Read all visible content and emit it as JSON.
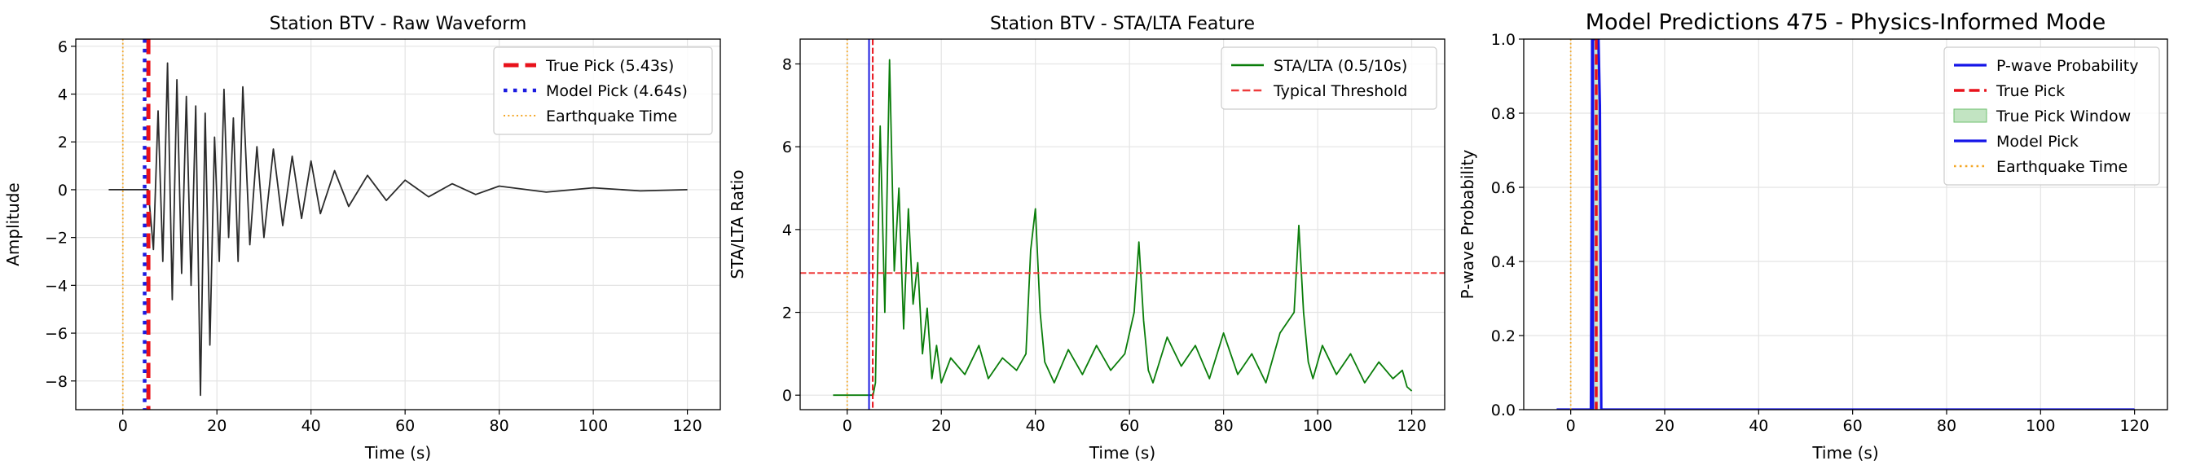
{
  "chart_data": [
    {
      "type": "line",
      "title": "Station BTV - Raw Waveform",
      "xlabel": "Time (s)",
      "ylabel": "Amplitude",
      "xlim": [
        -10,
        127
      ],
      "ylim": [
        -9.2,
        6.3
      ],
      "xticks": [
        0,
        20,
        40,
        60,
        80,
        100,
        120
      ],
      "xtick_labels": [
        "0",
        "20",
        "40",
        "60",
        "80",
        "100",
        "120"
      ],
      "yticks": [
        -8,
        -6,
        -4,
        -2,
        0,
        2,
        4,
        6
      ],
      "ytick_labels": [
        "−8",
        "−6",
        "−4",
        "−2",
        "0",
        "2",
        "4",
        "6"
      ],
      "grid": true,
      "legend_position": "top-right",
      "series": [
        {
          "color": "#2b2b2b",
          "style": "solid",
          "x": [
            -3,
            0,
            2,
            4,
            5.4,
            6.5,
            7.5,
            8.5,
            9.5,
            10.5,
            11.5,
            12.5,
            13.5,
            14.5,
            15.5,
            16.5,
            17.5,
            18.5,
            19.5,
            20.5,
            21.5,
            22.5,
            23.5,
            24.5,
            25.5,
            27,
            28.5,
            30,
            32,
            34,
            36,
            38,
            40,
            42,
            45,
            48,
            52,
            56,
            60,
            65,
            70,
            75,
            80,
            90,
            100,
            110,
            120
          ],
          "y": [
            0,
            0,
            0,
            0,
            0,
            -2.5,
            3.3,
            -3.0,
            5.3,
            -4.6,
            4.6,
            -3.5,
            3.9,
            -4.0,
            3.5,
            -8.6,
            3.2,
            -6.5,
            2.2,
            -3.0,
            4.2,
            -2.0,
            3.0,
            -3.0,
            4.3,
            -2.3,
            1.8,
            -2.0,
            1.7,
            -1.5,
            1.4,
            -1.2,
            1.2,
            -1.0,
            0.8,
            -0.7,
            0.6,
            -0.45,
            0.4,
            -0.3,
            0.25,
            -0.2,
            0.15,
            -0.1,
            0.08,
            -0.05,
            0
          ]
        }
      ],
      "vlines": [
        {
          "x": 5.43,
          "color": "#e8121b",
          "style": "dashed"
        },
        {
          "x": 4.64,
          "color": "#1b1be0",
          "style": "dotted"
        },
        {
          "x": 0,
          "color": "#f4a623",
          "style": "dotted"
        }
      ],
      "legend": [
        {
          "label": "True Pick (5.43s)",
          "color": "#e8121b",
          "style": "dashed"
        },
        {
          "label": "Model Pick (4.64s)",
          "color": "#1b1be0",
          "style": "dotted"
        },
        {
          "label": "Earthquake Time",
          "color": "#f4a623",
          "style": "dotted"
        }
      ]
    },
    {
      "type": "line",
      "title": "Station BTV - STA/LTA Feature",
      "xlabel": "Time (s)",
      "ylabel": "STA/LTA Ratio",
      "xlim": [
        -10,
        127
      ],
      "ylim": [
        -0.35,
        8.6
      ],
      "xticks": [
        0,
        20,
        40,
        60,
        80,
        100,
        120
      ],
      "xtick_labels": [
        "0",
        "20",
        "40",
        "60",
        "80",
        "100",
        "120"
      ],
      "yticks": [
        0,
        2,
        4,
        6,
        8
      ],
      "ytick_labels": [
        "0",
        "2",
        "4",
        "6",
        "8"
      ],
      "grid": true,
      "legend_position": "top-right",
      "series": [
        {
          "name": "STA/LTA (0.5/10s)",
          "color": "#0a7d0a",
          "style": "solid",
          "x": [
            -3,
            5.5,
            6,
            7,
            8,
            9,
            10,
            11,
            12,
            13,
            14,
            15,
            16,
            17,
            18,
            19,
            20,
            22,
            25,
            28,
            30,
            33,
            36,
            38,
            39,
            40,
            41,
            42,
            44,
            47,
            50,
            53,
            56,
            59,
            61,
            62,
            63,
            64,
            65,
            68,
            71,
            74,
            77,
            80,
            83,
            86,
            89,
            92,
            95,
            96,
            97,
            98,
            99,
            101,
            104,
            107,
            110,
            113,
            116,
            118,
            119,
            120
          ],
          "y": [
            0,
            0,
            0.3,
            6.5,
            2.0,
            8.1,
            3.0,
            5.0,
            1.6,
            4.5,
            2.2,
            3.2,
            1.0,
            2.1,
            0.4,
            1.2,
            0.3,
            0.9,
            0.5,
            1.2,
            0.4,
            0.9,
            0.6,
            1.0,
            3.5,
            4.5,
            2.0,
            0.8,
            0.3,
            1.1,
            0.5,
            1.2,
            0.6,
            1.0,
            2.0,
            3.7,
            1.8,
            0.6,
            0.3,
            1.4,
            0.7,
            1.2,
            0.4,
            1.5,
            0.5,
            1.0,
            0.3,
            1.5,
            2.0,
            4.1,
            2.0,
            0.8,
            0.4,
            1.2,
            0.5,
            1.0,
            0.3,
            0.8,
            0.4,
            0.6,
            0.2,
            0.1
          ]
        }
      ],
      "hlines": [
        {
          "y": 2.95,
          "color": "#ee3b3b",
          "style": "dashed",
          "name": "Typical Threshold"
        }
      ],
      "vlines": [
        {
          "x": 0,
          "color": "#f4a623",
          "style": "dotted"
        },
        {
          "x": 4.64,
          "color": "#1b1be0",
          "style": "solid"
        },
        {
          "x": 5.43,
          "color": "#e8121b",
          "style": "dashed"
        }
      ],
      "legend": [
        {
          "label": "STA/LTA (0.5/10s)",
          "color": "#0a7d0a",
          "style": "solid"
        },
        {
          "label": "Typical Threshold",
          "color": "#ee3b3b",
          "style": "dashed"
        }
      ]
    },
    {
      "type": "line",
      "title": "Model Predictions 475 - Physics-Informed Mode",
      "xlabel": "Time (s)",
      "ylabel": "P-wave Probability",
      "xlim": [
        -10,
        127
      ],
      "ylim": [
        0,
        1.0
      ],
      "xticks": [
        0,
        20,
        40,
        60,
        80,
        100,
        120
      ],
      "xtick_labels": [
        "0",
        "20",
        "40",
        "60",
        "80",
        "100",
        "120"
      ],
      "yticks": [
        0,
        0.2,
        0.4,
        0.6,
        0.8,
        1.0
      ],
      "ytick_labels": [
        "0.0",
        "0.2",
        "0.4",
        "0.6",
        "0.8",
        "1.0"
      ],
      "grid": true,
      "legend_position": "top-right",
      "series": [
        {
          "name": "P-wave Probability",
          "color": "#1515e8",
          "style": "solid",
          "x": [
            -3,
            4.3,
            4.64,
            5.0,
            5.43,
            5.9,
            6.2,
            6.5,
            120
          ],
          "y": [
            0,
            0,
            1.0,
            1.0,
            1.0,
            1.0,
            0.82,
            0,
            0
          ]
        }
      ],
      "spans": [
        {
          "x0": 4.9,
          "x1": 5.95,
          "color": "#a8d8a8",
          "name": "True Pick Window"
        }
      ],
      "vlines": [
        {
          "x": 0,
          "color": "#f4a623",
          "style": "dotted"
        },
        {
          "x": 4.64,
          "color": "#1515e8",
          "style": "solid"
        },
        {
          "x": 5.43,
          "color": "#e8121b",
          "style": "dashed"
        }
      ],
      "legend": [
        {
          "label": "P-wave Probability",
          "color": "#1515e8",
          "style": "solid"
        },
        {
          "label": "True Pick",
          "color": "#e8121b",
          "style": "dashed"
        },
        {
          "label": "True Pick Window",
          "color": "#a8d8a8",
          "style": "fill"
        },
        {
          "label": "Model Pick",
          "color": "#1515e8",
          "style": "solid"
        },
        {
          "label": "Earthquake Time",
          "color": "#f4a623",
          "style": "dotted"
        }
      ]
    }
  ]
}
